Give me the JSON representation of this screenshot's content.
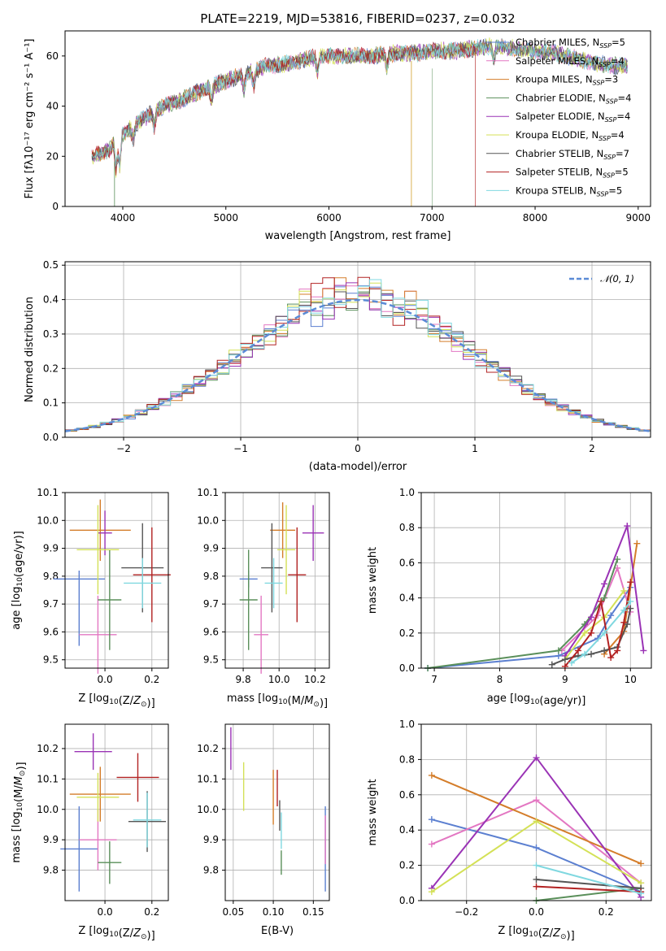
{
  "chart_data": [
    {
      "id": "spectrum",
      "type": "line",
      "title": "PLATE=2219, MJD=53816, FIBERID=0237, z=0.032",
      "xlabel": "wavelength [Angstrom, rest frame]",
      "ylabel": "Flux [fλ10⁻¹⁷ erg cm⁻² s⁻¹ A⁻¹]",
      "xlim": [
        3440,
        9120
      ],
      "ylim": [
        0,
        70
      ],
      "xticks": [
        4000,
        5000,
        6000,
        7000,
        8000,
        9000
      ],
      "yticks": [
        0,
        20,
        40,
        60
      ],
      "legend_position": "upper right",
      "series": [
        {
          "name": "Chabrier MILES, N_SSP=5",
          "color": "#5b7fd0"
        },
        {
          "name": "Salpeter MILES, N_SSP=4",
          "color": "#e377c2"
        },
        {
          "name": "Kroupa MILES, N_SSP=3",
          "color": "#d47d2a"
        },
        {
          "name": "Chabrier ELODIE, N_SSP=4",
          "color": "#5a8f5a"
        },
        {
          "name": "Salpeter ELODIE, N_SSP=4",
          "color": "#9a33b5"
        },
        {
          "name": "Kroupa ELODIE, N_SSP=4",
          "color": "#d4e157"
        },
        {
          "name": "Chabrier STELIB, N_SSP=7",
          "color": "#555555"
        },
        {
          "name": "Salpeter STELIB, N_SSP=5",
          "color": "#b22222"
        },
        {
          "name": "Kroupa STELIB, N_SSP=5",
          "color": "#80d8e0"
        }
      ],
      "continuum": [
        [
          3700,
          20
        ],
        [
          3850,
          22
        ],
        [
          4000,
          29
        ],
        [
          4200,
          35
        ],
        [
          4400,
          40
        ],
        [
          4600,
          43
        ],
        [
          4800,
          47
        ],
        [
          5000,
          50
        ],
        [
          5200,
          53
        ],
        [
          5400,
          56
        ],
        [
          5600,
          57
        ],
        [
          5800,
          59
        ],
        [
          6000,
          60
        ],
        [
          6200,
          60
        ],
        [
          6400,
          60
        ],
        [
          6600,
          61
        ],
        [
          6800,
          61
        ],
        [
          7000,
          62
        ],
        [
          7200,
          62
        ],
        [
          7400,
          63
        ],
        [
          7600,
          64
        ],
        [
          7800,
          63
        ],
        [
          8000,
          62
        ],
        [
          8200,
          61
        ],
        [
          8400,
          59
        ],
        [
          8600,
          57
        ],
        [
          8800,
          56
        ],
        [
          8900,
          56
        ]
      ],
      "absorption_lines": [
        3934,
        3969,
        4101,
        4305,
        4861,
        5175,
        5270,
        5890,
        6563,
        7600
      ]
    },
    {
      "id": "residuals",
      "type": "histogram",
      "xlabel": "(data-model)/error",
      "ylabel": "Normed distribution",
      "xlim": [
        -2.5,
        2.5
      ],
      "ylim": [
        0,
        0.51
      ],
      "xticks": [
        -2,
        -1,
        0,
        1,
        2
      ],
      "yticks": [
        0.0,
        0.1,
        0.2,
        0.3,
        0.4,
        0.5
      ],
      "bin_width": 0.1,
      "reference_curve": {
        "name": "𝒩(0, 1)",
        "color": "#5b8bd6",
        "style": "dashed"
      },
      "legend_position": "upper right"
    },
    {
      "id": "age-vs-Z",
      "type": "scatter",
      "xlabel": "Z [log10(Z/Z⊙)]",
      "ylabel": "age  [log10(age/yr)]",
      "xlim": [
        -0.17,
        0.27
      ],
      "ylim": [
        9.47,
        10.1
      ],
      "xticks": [
        "0.0",
        "0.2"
      ],
      "yticks": [
        "9.5",
        "9.6",
        "9.7",
        "9.8",
        "9.9",
        "10.0",
        "10.1"
      ],
      "points": [
        {
          "x": -0.11,
          "y": 9.79,
          "xerr": 0.11,
          "yerr": 0.03,
          "yerr_lo": 0.24,
          "color": "#5b7fd0"
        },
        {
          "x": -0.03,
          "y": 9.59,
          "xerr": 0.08,
          "yerr": 0.14,
          "color": "#e377c2"
        },
        {
          "x": -0.02,
          "y": 9.965,
          "xerr": 0.13,
          "yerr": 0.11,
          "color": "#d47d2a"
        },
        {
          "x": 0.02,
          "y": 9.715,
          "xerr": 0.05,
          "yerr": 0.18,
          "color": "#5a8f5a"
        },
        {
          "x": 0.0,
          "y": 9.955,
          "xerr": 0.03,
          "yerr": 0.08,
          "color": "#9a33b5"
        },
        {
          "x": -0.03,
          "y": 9.895,
          "xerr": 0.09,
          "yerr": 0.16,
          "color": "#d4e157"
        },
        {
          "x": 0.16,
          "y": 9.83,
          "xerr": 0.09,
          "yerr": 0.16,
          "color": "#555555"
        },
        {
          "x": 0.2,
          "y": 9.805,
          "xerr": 0.08,
          "yerr": 0.17,
          "color": "#b22222"
        },
        {
          "x": 0.16,
          "y": 9.775,
          "xerr": 0.08,
          "yerr": 0.09,
          "color": "#80d8e0"
        }
      ]
    },
    {
      "id": "age-vs-mass",
      "type": "scatter",
      "xlabel": "mass [log10(M/M⊙)]",
      "xlim": [
        9.7,
        10.28
      ],
      "ylim": [
        9.47,
        10.1
      ],
      "xticks": [
        "9.8",
        "10.0",
        "10.2"
      ],
      "yticks": [
        "9.5",
        "9.6",
        "9.7",
        "9.8",
        "9.9",
        "10.0",
        "10.1"
      ],
      "points": [
        {
          "x": 9.83,
          "y": 9.79,
          "xerr": 0.05,
          "yerr": 0.03,
          "color": "#5b7fd0"
        },
        {
          "x": 9.9,
          "y": 9.59,
          "xerr": 0.04,
          "yerr": 0.14,
          "color": "#e377c2"
        },
        {
          "x": 10.02,
          "y": 9.965,
          "xerr": 0.07,
          "yerr": 0.1,
          "color": "#d47d2a"
        },
        {
          "x": 9.83,
          "y": 9.715,
          "xerr": 0.05,
          "yerr": 0.18,
          "color": "#5a8f5a"
        },
        {
          "x": 10.19,
          "y": 9.955,
          "xerr": 0.06,
          "yerr": 0.1,
          "color": "#9a33b5"
        },
        {
          "x": 10.04,
          "y": 9.895,
          "xerr": 0.05,
          "yerr": 0.16,
          "color": "#d4e157"
        },
        {
          "x": 9.96,
          "y": 9.83,
          "xerr": 0.06,
          "yerr": 0.16,
          "color": "#555555"
        },
        {
          "x": 10.1,
          "y": 9.805,
          "xerr": 0.05,
          "yerr": 0.17,
          "color": "#b22222"
        },
        {
          "x": 9.97,
          "y": 9.775,
          "xerr": 0.05,
          "yerr": 0.09,
          "color": "#80d8e0"
        }
      ]
    },
    {
      "id": "massweight-vs-age",
      "type": "line",
      "xlabel": "age  [log10(age/yr)]",
      "ylabel": "mass weight",
      "xlim": [
        6.8,
        10.32
      ],
      "ylim": [
        0,
        1.0
      ],
      "xticks": [
        "7",
        "8",
        "9",
        "10"
      ],
      "yticks": [
        "0.0",
        "0.2",
        "0.4",
        "0.6",
        "0.8",
        "1.0"
      ],
      "series": [
        {
          "color": "#5b7fd0",
          "x": [
            6.9,
            8.9,
            9.5,
            9.7,
            10.0
          ],
          "y": [
            0.0,
            0.07,
            0.17,
            0.3,
            0.46
          ]
        },
        {
          "color": "#e377c2",
          "x": [
            8.95,
            9.5,
            9.8,
            10.0
          ],
          "y": [
            0.1,
            0.3,
            0.57,
            0.32
          ]
        },
        {
          "color": "#d47d2a",
          "x": [
            9.6,
            9.9,
            10.1
          ],
          "y": [
            0.08,
            0.21,
            0.71
          ]
        },
        {
          "color": "#5a8f5a",
          "x": [
            6.9,
            8.9,
            9.3,
            9.6,
            9.8
          ],
          "y": [
            0.0,
            0.1,
            0.25,
            0.4,
            0.62
          ]
        },
        {
          "color": "#9a33b5",
          "x": [
            9.0,
            9.4,
            9.6,
            9.95,
            10.2
          ],
          "y": [
            0.07,
            0.29,
            0.48,
            0.81,
            0.1
          ]
        },
        {
          "color": "#d4e157",
          "x": [
            9.0,
            9.3,
            9.6,
            9.9
          ],
          "y": [
            0.05,
            0.2,
            0.29,
            0.44
          ]
        },
        {
          "color": "#555555",
          "x": [
            8.8,
            9.0,
            9.2,
            9.4,
            9.6,
            9.8,
            9.95,
            10.0
          ],
          "y": [
            0.02,
            0.05,
            0.07,
            0.08,
            0.1,
            0.12,
            0.25,
            0.34
          ]
        },
        {
          "color": "#b22222",
          "x": [
            9.0,
            9.2,
            9.4,
            9.55,
            9.7,
            9.8,
            9.9,
            10.0
          ],
          "y": [
            0.01,
            0.1,
            0.2,
            0.38,
            0.06,
            0.1,
            0.26,
            0.49
          ]
        },
        {
          "color": "#80d8e0",
          "x": [
            9.1,
            9.3,
            9.6,
            9.9,
            10.0
          ],
          "y": [
            0.03,
            0.08,
            0.2,
            0.33,
            0.38
          ]
        }
      ]
    },
    {
      "id": "mass-vs-Z",
      "type": "scatter",
      "xlabel": "Z [log10(Z/Z⊙)]",
      "ylabel": "mass [log10(M/M⊙)]",
      "xlim": [
        -0.17,
        0.27
      ],
      "ylim": [
        9.7,
        10.28
      ],
      "xticks": [
        "0.0",
        "0.2"
      ],
      "yticks": [
        "9.8",
        "9.9",
        "10.0",
        "10.1",
        "10.2"
      ],
      "points": [
        {
          "x": -0.11,
          "y": 9.87,
          "xerr": 0.08,
          "yerr": 0.14,
          "color": "#5b7fd0"
        },
        {
          "x": -0.03,
          "y": 9.9,
          "xerr": 0.08,
          "yerr": 0.1,
          "color": "#e377c2"
        },
        {
          "x": -0.02,
          "y": 10.05,
          "xerr": 0.13,
          "yerr": 0.09,
          "color": "#d47d2a"
        },
        {
          "x": 0.02,
          "y": 9.825,
          "xerr": 0.05,
          "yerr": 0.07,
          "color": "#5a8f5a"
        },
        {
          "x": -0.05,
          "y": 10.19,
          "xerr": 0.08,
          "yerr": 0.06,
          "color": "#9a33b5"
        },
        {
          "x": -0.03,
          "y": 10.04,
          "xerr": 0.09,
          "yerr": 0.08,
          "color": "#d4e157"
        },
        {
          "x": 0.18,
          "y": 9.96,
          "xerr": 0.08,
          "yerr": 0.1,
          "color": "#555555"
        },
        {
          "x": 0.14,
          "y": 10.105,
          "xerr": 0.09,
          "yerr": 0.08,
          "color": "#b22222"
        },
        {
          "x": 0.18,
          "y": 9.965,
          "xerr": 0.06,
          "yerr": 0.09,
          "color": "#80d8e0"
        }
      ]
    },
    {
      "id": "mass-vs-ebv",
      "type": "scatter",
      "xlabel": "E(B-V)",
      "xlim": [
        0.04,
        0.17
      ],
      "ylim": [
        9.7,
        10.28
      ],
      "xticks": [
        "0.05",
        "0.10",
        "0.15"
      ],
      "yticks": [
        "9.8",
        "9.9",
        "10.0",
        "10.1",
        "10.2"
      ],
      "points": [
        {
          "x": 0.165,
          "y": 9.87,
          "yerr": 0.14,
          "color": "#5b7fd0"
        },
        {
          "x": 0.165,
          "y": 9.9,
          "yerr": 0.08,
          "color": "#e377c2"
        },
        {
          "x": 0.1,
          "y": 10.04,
          "yerr": 0.09,
          "color": "#d47d2a"
        },
        {
          "x": 0.11,
          "y": 9.825,
          "yerr": 0.04,
          "color": "#5a8f5a"
        },
        {
          "x": 0.047,
          "y": 10.2,
          "yerr": 0.07,
          "color": "#9a33b5"
        },
        {
          "x": 0.063,
          "y": 10.075,
          "yerr": 0.08,
          "color": "#d4e157"
        },
        {
          "x": 0.108,
          "y": 9.98,
          "yerr": 0.05,
          "color": "#555555"
        },
        {
          "x": 0.105,
          "y": 10.07,
          "yerr": 0.06,
          "color": "#b22222"
        },
        {
          "x": 0.11,
          "y": 9.93,
          "yerr": 0.06,
          "color": "#80d8e0"
        }
      ]
    },
    {
      "id": "massweight-vs-Z",
      "type": "line",
      "xlabel": "Z [log10(Z/Z⊙)]",
      "ylabel": "mass weight",
      "xlim": [
        -0.33,
        0.33
      ],
      "ylim": [
        0,
        1.0
      ],
      "xticks": [
        "−0.2",
        "0.0",
        "0.2"
      ],
      "yticks": [
        "0.0",
        "0.2",
        "0.4",
        "0.6",
        "0.8",
        "1.0"
      ],
      "series": [
        {
          "color": "#5b7fd0",
          "x": [
            -0.3,
            0.0,
            0.3
          ],
          "y": [
            0.46,
            0.3,
            0.05
          ]
        },
        {
          "color": "#e377c2",
          "x": [
            -0.3,
            0.0,
            0.3
          ],
          "y": [
            0.32,
            0.57,
            0.1
          ]
        },
        {
          "color": "#d47d2a",
          "x": [
            -0.3,
            0.3
          ],
          "y": [
            0.71,
            0.21
          ]
        },
        {
          "color": "#5a8f5a",
          "x": [
            0.0,
            0.3
          ],
          "y": [
            0.0,
            0.07
          ]
        },
        {
          "color": "#9a33b5",
          "x": [
            -0.3,
            0.0,
            0.3
          ],
          "y": [
            0.07,
            0.81,
            0.02
          ]
        },
        {
          "color": "#d4e157",
          "x": [
            -0.3,
            0.0,
            0.3
          ],
          "y": [
            0.05,
            0.45,
            0.1
          ]
        },
        {
          "color": "#555555",
          "x": [
            0.0,
            0.3
          ],
          "y": [
            0.12,
            0.07
          ]
        },
        {
          "color": "#b22222",
          "x": [
            0.0,
            0.3
          ],
          "y": [
            0.08,
            0.05
          ]
        },
        {
          "color": "#80d8e0",
          "x": [
            0.0,
            0.3
          ],
          "y": [
            0.2,
            0.04
          ]
        }
      ]
    }
  ]
}
